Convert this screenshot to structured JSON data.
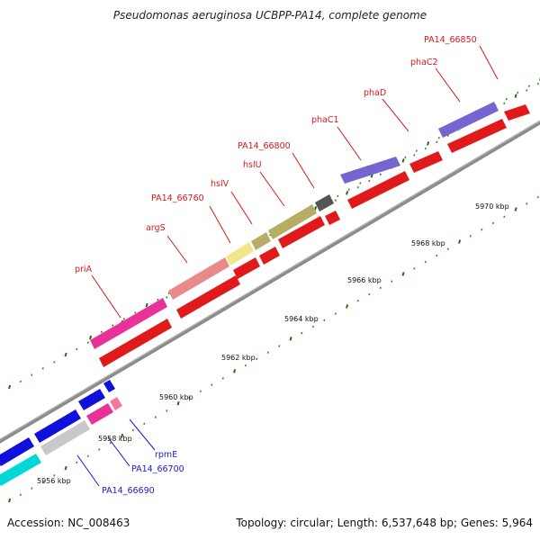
{
  "title": "Pseudomonas aeruginosa UCBPP-PA14, complete genome",
  "footer": {
    "accession": "Accession: NC_008463",
    "summary": "Topology: circular; Length: 6,537,648 bp; Genes: 5,964"
  },
  "colors": {
    "forward_red": "#e01a1a",
    "label_red": "#d81818",
    "label_blue": "#1a1ad0",
    "tick_green": "#2a7a1a",
    "backbone": "#888888",
    "pink": "#e8329a",
    "salmon": "#e98a8a",
    "khaki": "#b6ae66",
    "pale_yellow": "#f0e68c",
    "slate": "#7664d0",
    "dark_grey": "#555555",
    "blue": "#1010dd",
    "grey": "#c8c8c8",
    "cyan": "#00d8d8",
    "light_pink": "#f07a9a"
  },
  "scale_labels": [
    {
      "pos": 5956,
      "label": "5956 kbp"
    },
    {
      "pos": 5958,
      "label": "5958 kbp"
    },
    {
      "pos": 5960,
      "label": "5960 kbp"
    },
    {
      "pos": 5962,
      "label": "5962 kbp"
    },
    {
      "pos": 5964,
      "label": "5964 kbp"
    },
    {
      "pos": 5966,
      "label": "5966 kbp"
    },
    {
      "pos": 5968,
      "label": "5968 kbp"
    },
    {
      "pos": 5970,
      "label": "5970 kbp"
    }
  ],
  "gene_labels": [
    {
      "name": "priA",
      "color": "red"
    },
    {
      "name": "argS",
      "color": "red"
    },
    {
      "name": "PA14_66760",
      "color": "red"
    },
    {
      "name": "hslV",
      "color": "red"
    },
    {
      "name": "hslU",
      "color": "red"
    },
    {
      "name": "PA14_66800",
      "color": "red"
    },
    {
      "name": "phaC1",
      "color": "red"
    },
    {
      "name": "phaD",
      "color": "red"
    },
    {
      "name": "phaC2",
      "color": "red"
    },
    {
      "name": "PA14_66850",
      "color": "red"
    },
    {
      "name": "rpmE",
      "color": "blue"
    },
    {
      "name": "PA14_66700",
      "color": "blue"
    },
    {
      "name": "PA14_66690",
      "color": "blue"
    }
  ]
}
